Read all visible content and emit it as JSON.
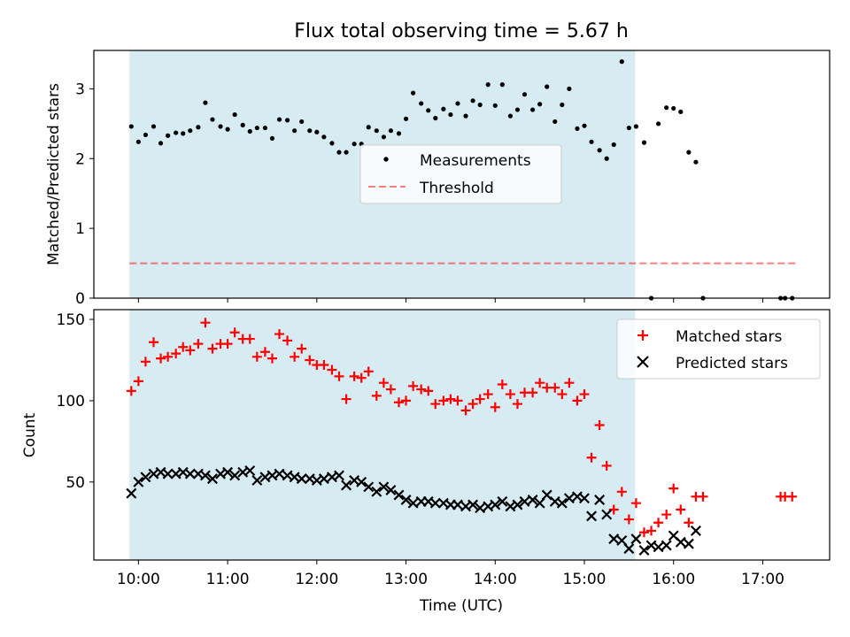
{
  "title": "Flux total observing time = 5.67 h",
  "xlabel": "Time (UTC)",
  "x_ticks": [
    "10:00",
    "11:00",
    "12:00",
    "13:00",
    "14:00",
    "15:00",
    "16:00",
    "17:00"
  ],
  "colors": {
    "shade": "#add8e6",
    "threshold": "#ff0000",
    "matched": "#ff0000",
    "predicted": "#000000",
    "measurement": "#000000"
  },
  "chart_data": [
    {
      "type": "scatter",
      "title": "Flux total observing time = 5.67 h",
      "ylabel": "Matched/Predicted stars",
      "xlabel": "",
      "x_unit": "hours UTC",
      "xlim": [
        9.5,
        17.75
      ],
      "ylim": [
        0,
        3.55
      ],
      "y_ticks": [
        "0",
        "1",
        "2",
        "3"
      ],
      "shaded_region": [
        9.9,
        15.57
      ],
      "legend_position": "center",
      "legend": [
        "Measurements",
        "Threshold"
      ],
      "threshold": {
        "name": "Threshold",
        "y": 0.5,
        "x_range": [
          9.9,
          17.4
        ],
        "style": "dashed"
      },
      "series": [
        {
          "name": "Measurements",
          "points": [
            [
              9.92,
              2.46
            ],
            [
              10.0,
              2.24
            ],
            [
              10.08,
              2.34
            ],
            [
              10.17,
              2.46
            ],
            [
              10.25,
              2.22
            ],
            [
              10.33,
              2.33
            ],
            [
              10.42,
              2.37
            ],
            [
              10.5,
              2.36
            ],
            [
              10.58,
              2.4
            ],
            [
              10.67,
              2.45
            ],
            [
              10.75,
              2.8
            ],
            [
              10.83,
              2.56
            ],
            [
              10.92,
              2.46
            ],
            [
              11.0,
              2.42
            ],
            [
              11.08,
              2.63
            ],
            [
              11.17,
              2.48
            ],
            [
              11.25,
              2.39
            ],
            [
              11.33,
              2.44
            ],
            [
              11.42,
              2.44
            ],
            [
              11.5,
              2.29
            ],
            [
              11.58,
              2.56
            ],
            [
              11.67,
              2.55
            ],
            [
              11.75,
              2.4
            ],
            [
              11.83,
              2.53
            ],
            [
              11.92,
              2.4
            ],
            [
              12.0,
              2.38
            ],
            [
              12.08,
              2.31
            ],
            [
              12.17,
              2.22
            ],
            [
              12.25,
              2.09
            ],
            [
              12.33,
              2.09
            ],
            [
              12.42,
              2.21
            ],
            [
              12.5,
              2.21
            ],
            [
              12.58,
              2.45
            ],
            [
              12.67,
              2.4
            ],
            [
              12.75,
              2.31
            ],
            [
              12.83,
              2.4
            ],
            [
              12.92,
              2.36
            ],
            [
              13.0,
              2.57
            ],
            [
              13.08,
              2.94
            ],
            [
              13.17,
              2.79
            ],
            [
              13.25,
              2.69
            ],
            [
              13.33,
              2.58
            ],
            [
              13.42,
              2.71
            ],
            [
              13.5,
              2.63
            ],
            [
              13.58,
              2.79
            ],
            [
              13.67,
              2.61
            ],
            [
              13.75,
              2.83
            ],
            [
              13.83,
              2.77
            ],
            [
              13.92,
              3.06
            ],
            [
              14.0,
              2.76
            ],
            [
              14.08,
              3.06
            ],
            [
              14.17,
              2.61
            ],
            [
              14.25,
              2.7
            ],
            [
              14.33,
              2.92
            ],
            [
              14.42,
              2.7
            ],
            [
              14.5,
              2.78
            ],
            [
              14.58,
              3.03
            ],
            [
              14.67,
              2.53
            ],
            [
              14.75,
              2.77
            ],
            [
              14.83,
              3.0
            ],
            [
              14.92,
              2.43
            ],
            [
              15.0,
              2.47
            ],
            [
              15.08,
              2.24
            ],
            [
              15.17,
              2.12
            ],
            [
              15.25,
              2.0
            ],
            [
              15.33,
              2.2
            ],
            [
              15.42,
              3.39
            ],
            [
              15.5,
              2.44
            ],
            [
              15.58,
              2.46
            ],
            [
              15.67,
              2.23
            ],
            [
              15.75,
              0.0
            ],
            [
              15.83,
              2.5
            ],
            [
              15.92,
              2.73
            ],
            [
              16.0,
              2.72
            ],
            [
              16.08,
              2.67
            ],
            [
              16.17,
              2.09
            ],
            [
              16.25,
              1.95
            ],
            [
              16.33,
              0.0
            ],
            [
              17.2,
              0.0
            ],
            [
              17.25,
              0.0
            ],
            [
              17.33,
              0.0
            ]
          ]
        }
      ]
    },
    {
      "type": "scatter",
      "title": "",
      "xlabel": "Time (UTC)",
      "ylabel": "Count",
      "x_unit": "hours UTC",
      "xlim": [
        9.5,
        17.75
      ],
      "ylim": [
        2,
        156
      ],
      "y_ticks": [
        "50",
        "100",
        "150"
      ],
      "shaded_region": [
        9.9,
        15.57
      ],
      "legend_position": "top-right",
      "legend": [
        "Matched stars",
        "Predicted stars"
      ],
      "series": [
        {
          "name": "Matched stars",
          "marker": "plus",
          "points": [
            [
              9.92,
              106
            ],
            [
              10.0,
              112
            ],
            [
              10.08,
              124
            ],
            [
              10.17,
              136
            ],
            [
              10.25,
              126
            ],
            [
              10.33,
              127
            ],
            [
              10.42,
              129
            ],
            [
              10.5,
              133
            ],
            [
              10.58,
              131
            ],
            [
              10.67,
              135
            ],
            [
              10.75,
              148
            ],
            [
              10.83,
              132
            ],
            [
              10.92,
              135
            ],
            [
              11.0,
              135
            ],
            [
              11.08,
              142
            ],
            [
              11.17,
              138
            ],
            [
              11.25,
              138
            ],
            [
              11.33,
              127
            ],
            [
              11.42,
              130
            ],
            [
              11.5,
              126
            ],
            [
              11.58,
              141
            ],
            [
              11.67,
              137
            ],
            [
              11.75,
              127
            ],
            [
              11.83,
              132
            ],
            [
              11.92,
              125
            ],
            [
              12.0,
              122
            ],
            [
              12.08,
              122
            ],
            [
              12.17,
              119
            ],
            [
              12.25,
              115
            ],
            [
              12.33,
              101
            ],
            [
              12.42,
              115
            ],
            [
              12.5,
              114
            ],
            [
              12.58,
              118
            ],
            [
              12.67,
              103
            ],
            [
              12.75,
              111
            ],
            [
              12.83,
              107
            ],
            [
              12.92,
              99
            ],
            [
              13.0,
              100
            ],
            [
              13.08,
              109
            ],
            [
              13.17,
              107
            ],
            [
              13.25,
              106
            ],
            [
              13.33,
              98
            ],
            [
              13.42,
              100
            ],
            [
              13.5,
              101
            ],
            [
              13.58,
              100
            ],
            [
              13.67,
              94
            ],
            [
              13.75,
              98
            ],
            [
              13.83,
              101
            ],
            [
              13.92,
              104
            ],
            [
              14.0,
              96
            ],
            [
              14.08,
              110
            ],
            [
              14.17,
              104
            ],
            [
              14.25,
              98
            ],
            [
              14.33,
              105
            ],
            [
              14.42,
              105
            ],
            [
              14.5,
              111
            ],
            [
              14.58,
              108
            ],
            [
              14.67,
              108
            ],
            [
              14.75,
              104
            ],
            [
              14.83,
              111
            ],
            [
              14.92,
              100
            ],
            [
              15.0,
              104
            ],
            [
              15.08,
              65
            ],
            [
              15.17,
              85
            ],
            [
              15.25,
              60
            ],
            [
              15.33,
              33
            ],
            [
              15.42,
              44
            ],
            [
              15.5,
              27
            ],
            [
              15.58,
              37
            ],
            [
              15.67,
              19
            ],
            [
              15.75,
              20
            ],
            [
              15.83,
              25
            ],
            [
              15.92,
              30
            ],
            [
              16.0,
              46
            ],
            [
              16.08,
              33
            ],
            [
              16.17,
              25
            ],
            [
              16.25,
              41
            ],
            [
              16.33,
              41
            ],
            [
              17.2,
              41
            ],
            [
              17.25,
              41
            ],
            [
              17.33,
              41
            ]
          ]
        },
        {
          "name": "Predicted stars",
          "marker": "x",
          "points": [
            [
              9.92,
              43
            ],
            [
              10.0,
              50
            ],
            [
              10.08,
              53
            ],
            [
              10.17,
              55
            ],
            [
              10.25,
              56
            ],
            [
              10.33,
              55
            ],
            [
              10.42,
              55
            ],
            [
              10.5,
              56
            ],
            [
              10.58,
              55
            ],
            [
              10.67,
              55
            ],
            [
              10.75,
              54
            ],
            [
              10.83,
              52
            ],
            [
              10.92,
              55
            ],
            [
              11.0,
              56
            ],
            [
              11.08,
              54
            ],
            [
              11.17,
              56
            ],
            [
              11.25,
              57
            ],
            [
              11.33,
              51
            ],
            [
              11.42,
              53
            ],
            [
              11.5,
              54
            ],
            [
              11.58,
              55
            ],
            [
              11.67,
              54
            ],
            [
              11.75,
              53
            ],
            [
              11.83,
              52
            ],
            [
              11.92,
              52
            ],
            [
              12.0,
              51
            ],
            [
              12.08,
              52
            ],
            [
              12.17,
              53
            ],
            [
              12.25,
              54
            ],
            [
              12.33,
              48
            ],
            [
              12.42,
              51
            ],
            [
              12.5,
              50
            ],
            [
              12.58,
              47
            ],
            [
              12.67,
              44
            ],
            [
              12.75,
              47
            ],
            [
              12.83,
              45
            ],
            [
              12.92,
              42
            ],
            [
              13.0,
              39
            ],
            [
              13.08,
              37
            ],
            [
              13.17,
              38
            ],
            [
              13.25,
              38
            ],
            [
              13.33,
              37
            ],
            [
              13.42,
              37
            ],
            [
              13.5,
              36
            ],
            [
              13.58,
              36
            ],
            [
              13.67,
              35
            ],
            [
              13.75,
              36
            ],
            [
              13.83,
              34
            ],
            [
              13.92,
              35
            ],
            [
              14.0,
              36
            ],
            [
              14.08,
              38
            ],
            [
              14.17,
              35
            ],
            [
              14.25,
              36
            ],
            [
              14.33,
              38
            ],
            [
              14.42,
              39
            ],
            [
              14.5,
              37
            ],
            [
              14.58,
              42
            ],
            [
              14.67,
              38
            ],
            [
              14.75,
              37
            ],
            [
              14.83,
              40
            ],
            [
              14.92,
              41
            ],
            [
              15.0,
              40
            ],
            [
              15.08,
              29
            ],
            [
              15.17,
              39
            ],
            [
              15.25,
              30
            ],
            [
              15.33,
              15
            ],
            [
              15.42,
              14
            ],
            [
              15.5,
              9
            ],
            [
              15.58,
              15
            ],
            [
              15.67,
              8
            ],
            [
              15.75,
              11
            ],
            [
              15.83,
              10
            ],
            [
              15.92,
              11
            ],
            [
              16.0,
              17
            ],
            [
              16.08,
              13
            ],
            [
              16.17,
              12
            ],
            [
              16.25,
              20
            ]
          ]
        }
      ]
    }
  ]
}
